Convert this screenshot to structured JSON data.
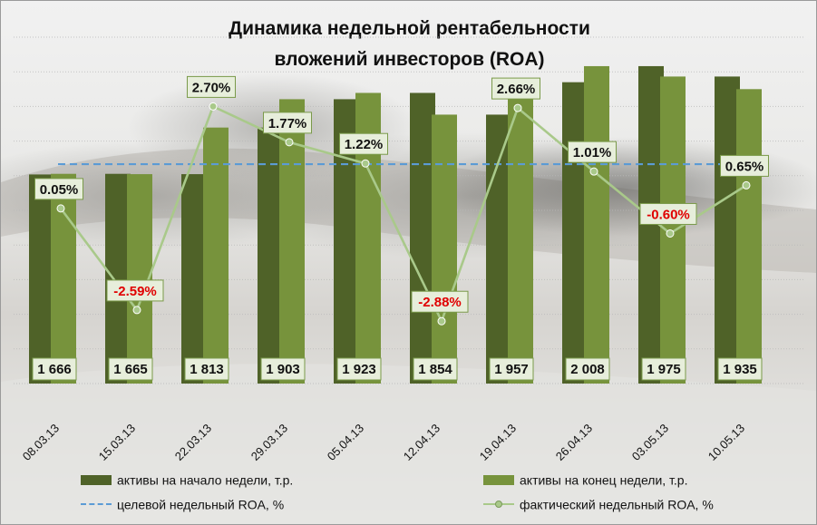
{
  "chart_data": {
    "type": "bar",
    "title": "Динамика недельной рентабельности\nвложений  инвесторов (ROA)",
    "categories": [
      "08.03.13",
      "15.03.13",
      "22.03.13",
      "29.03.13",
      "05.04.13",
      "12.04.13",
      "19.04.13",
      "26.04.13",
      "03.05.13",
      "10.05.13"
    ],
    "series": [
      {
        "name": "активы на начало  недели, т.р.",
        "kind": "bar",
        "color": "#4f6228",
        "values": [
          1664,
          1666,
          1665,
          1813,
          1903,
          1923,
          1854,
          1957,
          2008,
          1975
        ]
      },
      {
        "name": "активы на конец недели, т.р.",
        "kind": "bar",
        "color": "#77933c",
        "values": [
          1666,
          1665,
          1813,
          1903,
          1923,
          1854,
          1957,
          2008,
          1975,
          1935
        ]
      },
      {
        "name": "целевой недельный ROA, %",
        "kind": "line-dashed",
        "color": "#5b9bd5",
        "values": [
          1.2,
          1.2,
          1.2,
          1.2,
          1.2,
          1.2,
          1.2,
          1.2,
          1.2,
          1.2
        ]
      },
      {
        "name": "фактический недельный ROA, %",
        "kind": "line-markers",
        "color": "#a9c98a",
        "values": [
          0.05,
          -2.59,
          2.7,
          1.77,
          1.22,
          -2.88,
          2.66,
          1.01,
          -0.6,
          0.65
        ]
      }
    ],
    "bar_labels": [
      "1 666",
      "1 665",
      "1 813",
      "1 903",
      "1 923",
      "1 854",
      "1 957",
      "2 008",
      "1 975",
      "1 935"
    ],
    "roa_labels": [
      "0.05%",
      "-2.59%",
      "2.70%",
      "1.77%",
      "1.22%",
      "-2.88%",
      "2.66%",
      "1.01%",
      "-0.60%",
      "0.65%"
    ],
    "negative_label_color": "#e00000",
    "assets_axis": {
      "min": 1000,
      "max": 2100
    },
    "roa_axis": {
      "min": -4.5,
      "max": 4.5
    },
    "grid": true,
    "legend_position": "bottom"
  }
}
